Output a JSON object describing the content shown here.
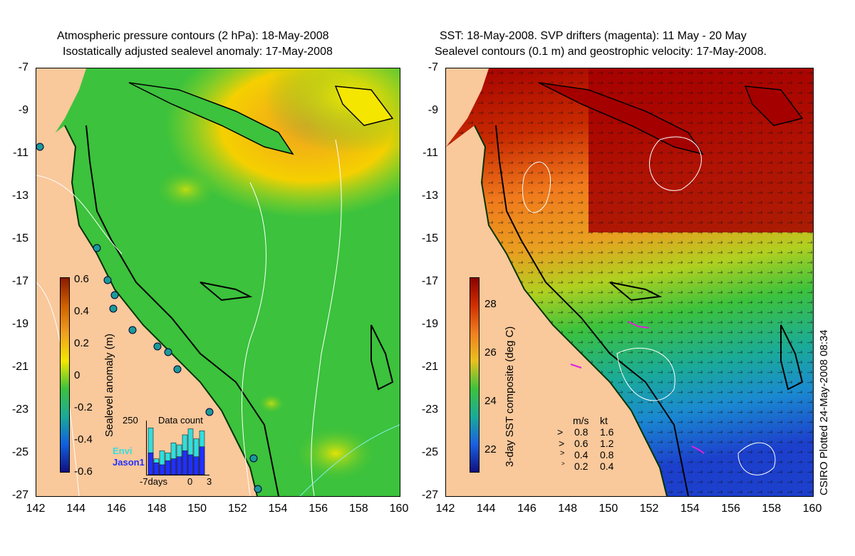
{
  "left": {
    "title_line1": "Atmospheric pressure contours (2 hPa): 18-May-2008",
    "title_line2": "Isostatically adjusted sealevel anomaly: 17-May-2008",
    "colorbar_label": "Sealevel anomaly (m)",
    "colorbar_ticks": [
      "0.6",
      "0.4",
      "0.2",
      "0",
      "-0.2",
      "-0.4",
      "-0.6"
    ],
    "inset": {
      "title": "Data count",
      "y_tick": "250",
      "legend_envi": "Envi",
      "legend_jason": "Jason1",
      "x_ticks": [
        "-7days",
        "0",
        "3"
      ],
      "envi_values": [
        235,
        80,
        120,
        110,
        160,
        150,
        200,
        230,
        180,
        220
      ],
      "jason_values": [
        110,
        60,
        50,
        70,
        80,
        90,
        120,
        100,
        90,
        140
      ]
    }
  },
  "right": {
    "title_line1": "SST: 18-May-2008. SVP drifters (magenta): 11 May - 20 May",
    "title_line2": "Sealevel contours (0.1 m) and geostrophic velocity: 17-May-2008.",
    "colorbar_label": "3-day SST composite (deg C)",
    "colorbar_ticks": [
      "28",
      "26",
      "24",
      "22"
    ],
    "velocity_legend": {
      "header_ms": "m/s",
      "header_kt": "kt",
      "rows": [
        {
          "ms": "0.8",
          "kt": "1.6"
        },
        {
          "ms": "0.6",
          "kt": "1.2"
        },
        {
          "ms": "0.4",
          "kt": "0.8"
        },
        {
          "ms": "0.2",
          "kt": "0.4"
        }
      ]
    }
  },
  "axes": {
    "y_ticks": [
      "-7",
      "-9",
      "-11",
      "-13",
      "-15",
      "-17",
      "-19",
      "-21",
      "-23",
      "-25",
      "-27"
    ],
    "x_ticks": [
      "142",
      "144",
      "146",
      "148",
      "150",
      "152",
      "154",
      "156",
      "158",
      "160"
    ]
  },
  "credit": "CSIRO Plotted 24-May-2008 08:34",
  "colors": {
    "land": "#f9c89b",
    "ocean_green": "#3cc23c",
    "sst_red": "#a40000",
    "sst_orange": "#f0791c",
    "sst_blue": "#1c3fcc",
    "drifter_magenta": "#e020e0"
  }
}
